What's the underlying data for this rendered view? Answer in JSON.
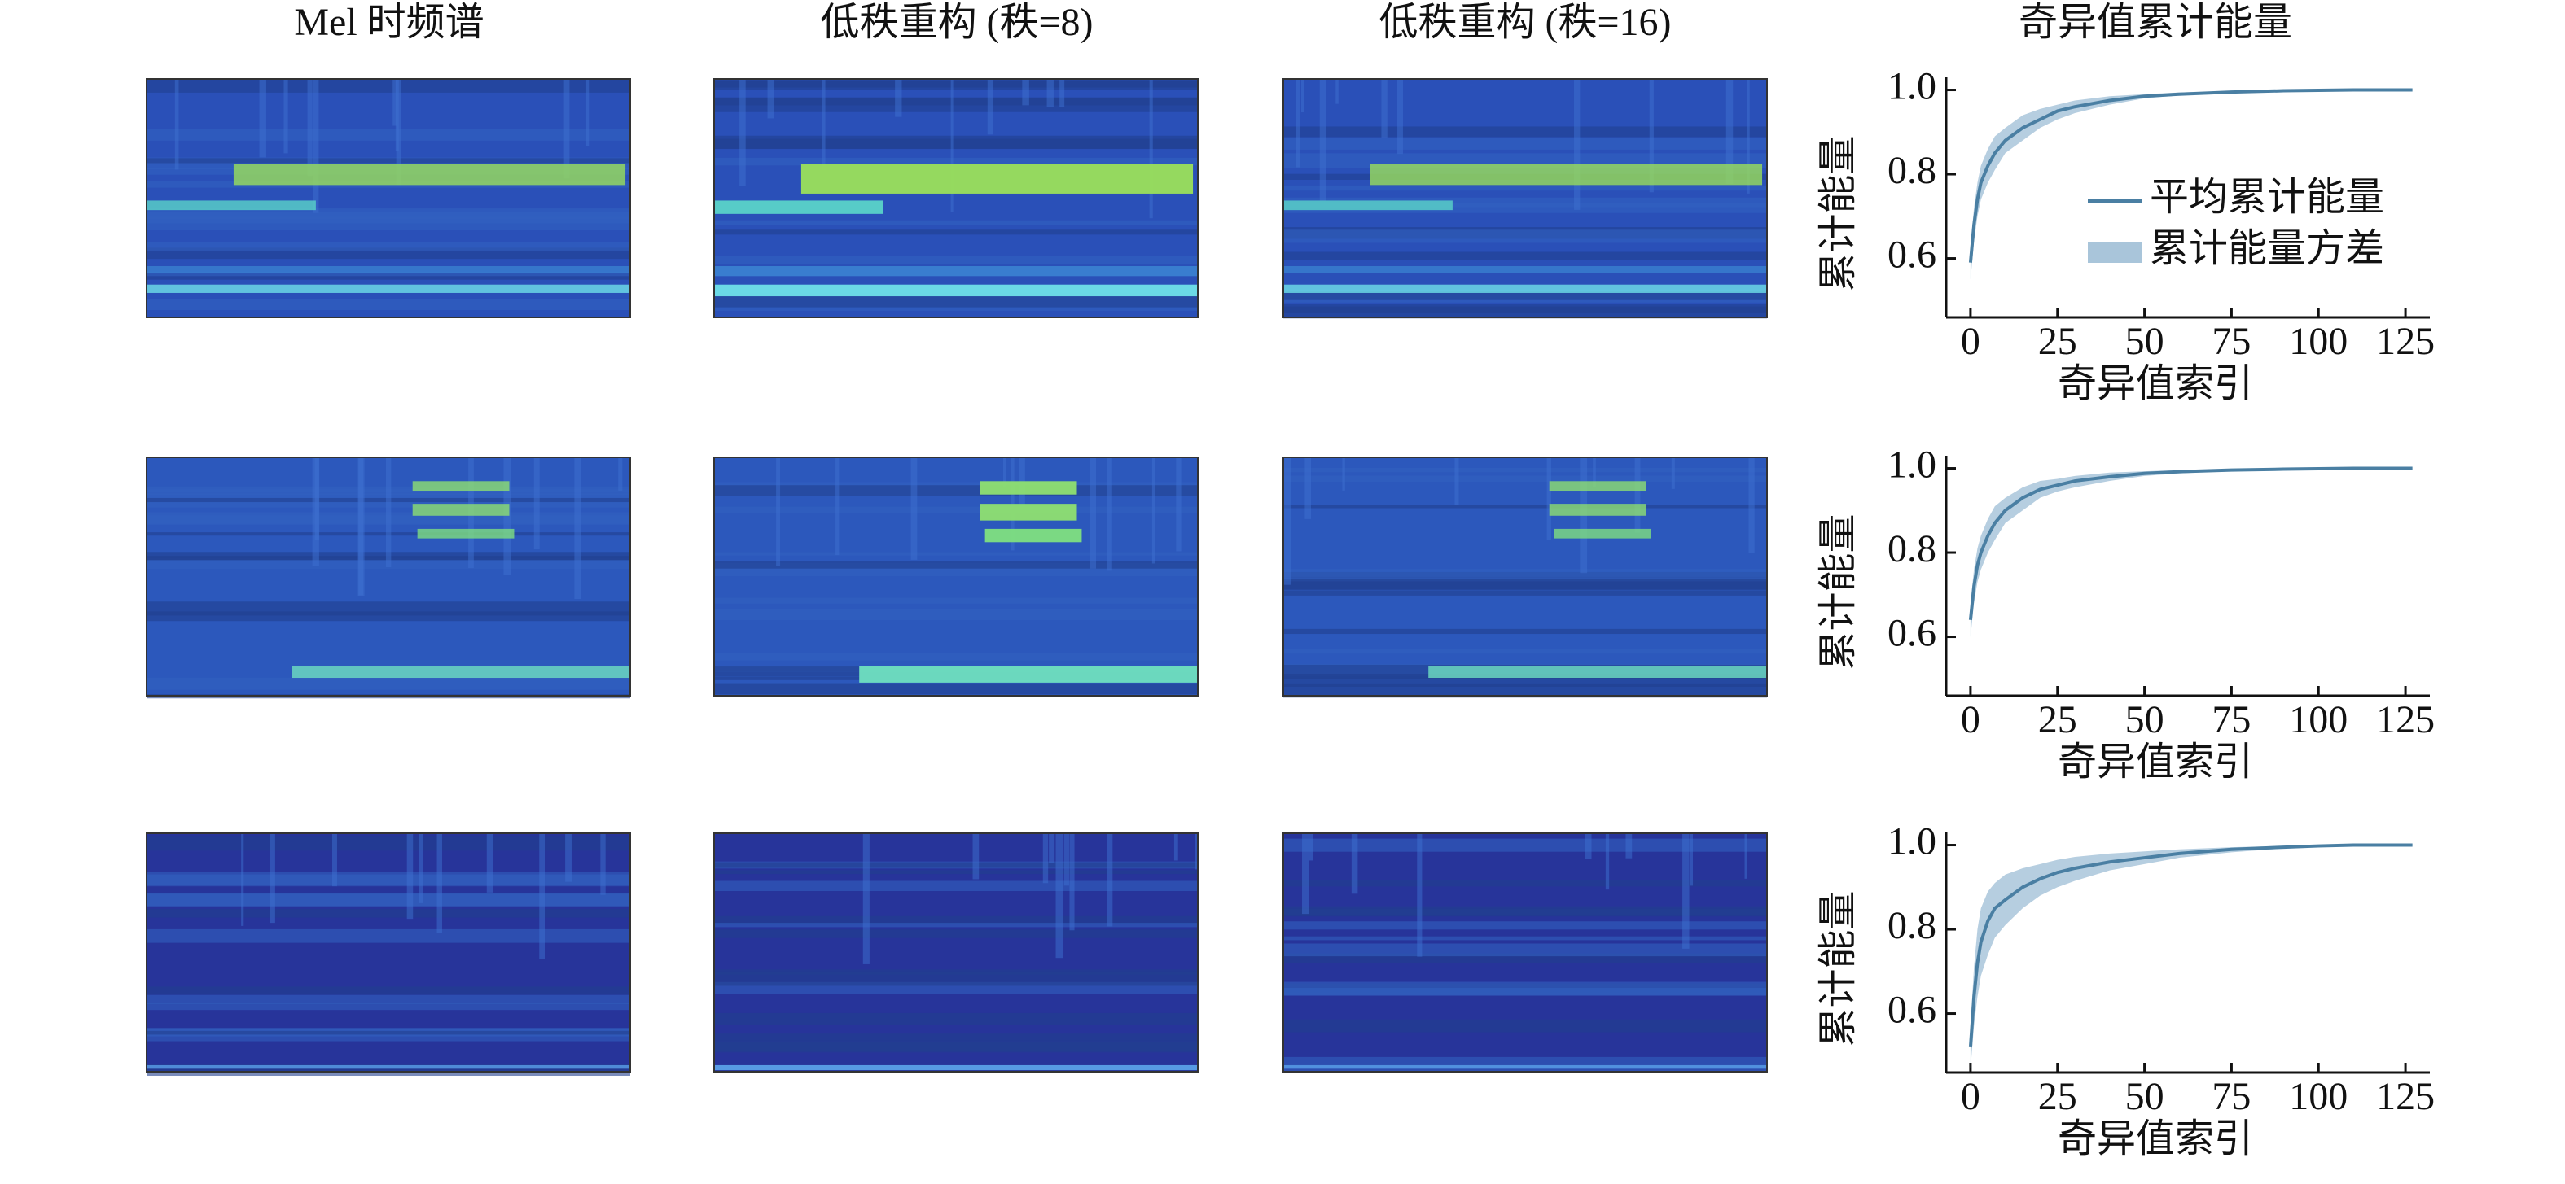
{
  "column_titles": [
    "Mel 时频谱",
    "低秩重构 (秩=8)",
    "低秩重构 (秩=16)"
  ],
  "chart_data": [
    {
      "type": "line",
      "title": "奇异值累计能量",
      "xlabel": "奇异值索引",
      "ylabel": "累计能量",
      "x": [
        0,
        1,
        2,
        3,
        5,
        7,
        10,
        15,
        20,
        25,
        30,
        40,
        50,
        60,
        75,
        90,
        100,
        110,
        127
      ],
      "series": [
        {
          "name": "平均累计能量",
          "color": "#4a7fa3",
          "values": [
            0.59,
            0.68,
            0.74,
            0.78,
            0.82,
            0.85,
            0.88,
            0.91,
            0.93,
            0.95,
            0.96,
            0.975,
            0.985,
            0.99,
            0.995,
            0.998,
            0.999,
            1.0,
            1.0
          ]
        },
        {
          "name": "累计能量方差",
          "color": "#a9c5da",
          "lower": [
            0.55,
            0.64,
            0.7,
            0.74,
            0.78,
            0.81,
            0.85,
            0.88,
            0.91,
            0.93,
            0.945,
            0.965,
            0.98,
            0.987,
            0.993,
            0.997,
            0.998,
            0.999,
            1.0
          ],
          "upper": [
            0.63,
            0.72,
            0.78,
            0.82,
            0.86,
            0.89,
            0.91,
            0.94,
            0.955,
            0.965,
            0.975,
            0.985,
            0.99,
            0.994,
            0.997,
            0.999,
            1.0,
            1.0,
            1.0
          ]
        }
      ],
      "xlim": [
        -7,
        132
      ],
      "ylim": [
        0.46,
        1.03
      ],
      "xticks": [
        0,
        25,
        50,
        75,
        100,
        125
      ],
      "yticks": [
        0.6,
        0.8,
        {
          "value": 1,
          "label": "1.0"
        }
      ],
      "legend": "center right"
    },
    {
      "type": "line",
      "xlabel": "奇异值索引",
      "ylabel": "累计能量",
      "x": [
        0,
        1,
        2,
        3,
        5,
        7,
        10,
        15,
        20,
        25,
        30,
        40,
        50,
        60,
        75,
        90,
        100,
        110,
        127
      ],
      "series": [
        {
          "name": "平均累计能量",
          "color": "#4a7fa3",
          "values": [
            0.64,
            0.72,
            0.77,
            0.8,
            0.84,
            0.87,
            0.9,
            0.93,
            0.95,
            0.96,
            0.97,
            0.98,
            0.988,
            0.992,
            0.996,
            0.998,
            0.999,
            1.0,
            1.0
          ]
        },
        {
          "name": "累计能量方差",
          "color": "#a9c5da",
          "lower": [
            0.6,
            0.68,
            0.73,
            0.76,
            0.8,
            0.83,
            0.87,
            0.9,
            0.93,
            0.945,
            0.955,
            0.97,
            0.982,
            0.988,
            0.994,
            0.997,
            0.998,
            0.999,
            1.0
          ],
          "upper": [
            0.68,
            0.76,
            0.81,
            0.84,
            0.88,
            0.91,
            0.93,
            0.955,
            0.97,
            0.975,
            0.982,
            0.99,
            0.993,
            0.996,
            0.998,
            0.999,
            1.0,
            1.0,
            1.0
          ]
        }
      ],
      "xlim": [
        -7,
        132
      ],
      "ylim": [
        0.46,
        1.03
      ],
      "xticks": [
        0,
        25,
        50,
        75,
        100,
        125
      ],
      "yticks": [
        0.6,
        0.8,
        {
          "value": 1,
          "label": "1.0"
        }
      ]
    },
    {
      "type": "line",
      "xlabel": "奇异值索引",
      "ylabel": "累计能量",
      "x": [
        0,
        1,
        2,
        3,
        5,
        7,
        10,
        15,
        20,
        25,
        30,
        40,
        50,
        60,
        75,
        90,
        100,
        110,
        127
      ],
      "series": [
        {
          "name": "平均累计能量",
          "color": "#4a7fa3",
          "values": [
            0.52,
            0.64,
            0.72,
            0.77,
            0.82,
            0.85,
            0.87,
            0.9,
            0.92,
            0.935,
            0.945,
            0.96,
            0.97,
            0.98,
            0.99,
            0.995,
            0.998,
            1.0,
            1.0
          ]
        },
        {
          "name": "累计能量方差",
          "color": "#a9c5da",
          "lower": [
            0.47,
            0.57,
            0.64,
            0.69,
            0.74,
            0.78,
            0.81,
            0.85,
            0.88,
            0.9,
            0.915,
            0.94,
            0.955,
            0.97,
            0.983,
            0.992,
            0.996,
            0.999,
            1.0
          ],
          "upper": [
            0.57,
            0.71,
            0.8,
            0.85,
            0.89,
            0.91,
            0.93,
            0.945,
            0.955,
            0.965,
            0.972,
            0.98,
            0.985,
            0.99,
            0.995,
            0.998,
            1.0,
            1.0,
            1.0
          ]
        }
      ],
      "xlim": [
        -7,
        132
      ],
      "ylim": [
        0.46,
        1.03
      ],
      "xticks": [
        0,
        25,
        50,
        75,
        100,
        125
      ],
      "yticks": [
        0.6,
        0.8,
        {
          "value": 1,
          "label": "1.0"
        }
      ]
    }
  ]
}
